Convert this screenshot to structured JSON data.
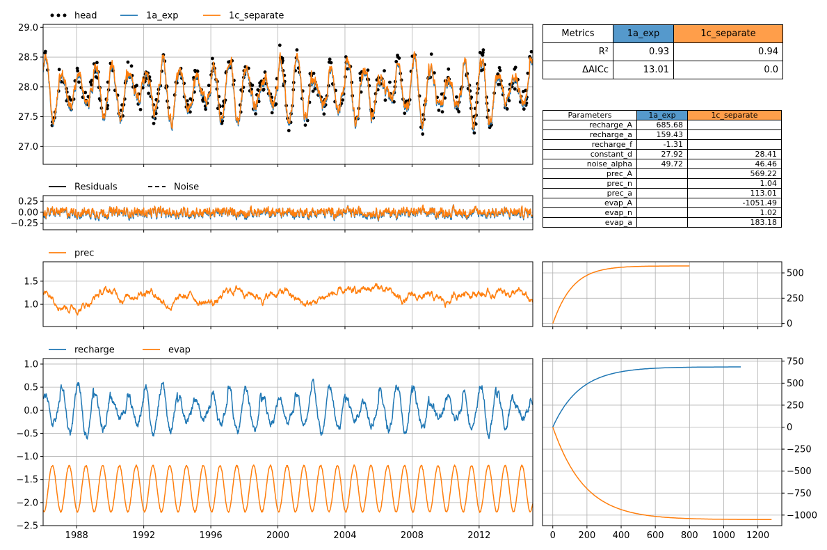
{
  "colors": {
    "blue": "#1f77b4",
    "orange": "#ff7f0e",
    "black": "#000000",
    "grid": "#b0b0b0",
    "header_blue": "#5599cc",
    "header_orange": "#ff9e4a"
  },
  "legends": {
    "head": [
      "head",
      "1a_exp",
      "1c_separate"
    ],
    "residuals": [
      "Residuals",
      "Noise"
    ],
    "prec": [
      "prec"
    ],
    "stress": [
      "recharge",
      "evap"
    ]
  },
  "metrics_table": {
    "header": [
      "Metrics",
      "1a_exp",
      "1c_separate"
    ],
    "rows": [
      {
        "label": "R²",
        "v1": "0.93",
        "v2": "0.94"
      },
      {
        "label": "ΔAICc",
        "v1": "13.01",
        "v2": "0.0"
      }
    ]
  },
  "params_table": {
    "header": [
      "Parameters",
      "1a_exp",
      "1c_separate"
    ],
    "rows": [
      {
        "label": "recharge_A",
        "v1": "685.68",
        "v2": ""
      },
      {
        "label": "recharge_a",
        "v1": "159.43",
        "v2": ""
      },
      {
        "label": "recharge_f",
        "v1": "-1.31",
        "v2": ""
      },
      {
        "label": "constant_d",
        "v1": "27.92",
        "v2": "28.41"
      },
      {
        "label": "noise_alpha",
        "v1": "49.72",
        "v2": "46.46"
      },
      {
        "label": "prec_A",
        "v1": "",
        "v2": "569.22"
      },
      {
        "label": "prec_n",
        "v1": "",
        "v2": "1.04"
      },
      {
        "label": "prec_a",
        "v1": "",
        "v2": "113.01"
      },
      {
        "label": "evap_A",
        "v1": "",
        "v2": "-1051.49"
      },
      {
        "label": "evap_n",
        "v1": "",
        "v2": "1.02"
      },
      {
        "label": "evap_a",
        "v1": "",
        "v2": "183.18"
      }
    ]
  },
  "chart_data": [
    {
      "id": "head",
      "type": "line",
      "xlim": [
        1986.0,
        2015.2
      ],
      "ylim": [
        26.7,
        29.05
      ],
      "xticks": [
        1988,
        1992,
        1996,
        2000,
        2004,
        2008,
        2012
      ],
      "yticks": [
        27.0,
        27.5,
        28.0,
        28.5,
        29.0
      ],
      "ytick_labels": [
        "27.0",
        "27.5",
        "28.0",
        "28.5",
        "29.0"
      ],
      "grid": true,
      "legend": "top-left, above axes",
      "series": [
        {
          "name": "head",
          "kind": "points",
          "color": "#000000"
        },
        {
          "name": "1a_exp",
          "kind": "line",
          "color": "#1f77b4"
        },
        {
          "name": "1c_separate",
          "kind": "line",
          "color": "#ff7f0e"
        }
      ],
      "seasonal_model": {
        "mean": 27.95,
        "amplitude": 0.45,
        "peak_frac": 0.15,
        "noise": 0.15
      }
    },
    {
      "id": "residuals",
      "type": "line",
      "xlim": [
        1986.0,
        2015.2
      ],
      "ylim": [
        -0.4,
        0.38
      ],
      "yticks": [
        -0.25,
        0.0,
        0.25
      ],
      "ytick_labels": [
        "−0.25",
        "0.00",
        "0.25"
      ],
      "grid": true,
      "legend": "top-left, above axes",
      "series": [
        {
          "name": "Residuals",
          "color": "#1f77b4"
        },
        {
          "name": "Noise",
          "color": "#ff7f0e"
        }
      ],
      "noise_model": {
        "mean": 0.0,
        "amplitude": 0.09
      }
    },
    {
      "id": "prec",
      "type": "line",
      "xlim": [
        1986.0,
        2015.2
      ],
      "ylim": [
        0.52,
        1.92
      ],
      "yticks": [
        1.0,
        1.5
      ],
      "ytick_labels": [
        "1.0",
        "1.5"
      ],
      "grid": true,
      "legend": "top-left, above axes",
      "series": [
        {
          "name": "prec",
          "color": "#ff7f0e"
        }
      ],
      "noise_model": {
        "mean": 1.18,
        "amplitude": 0.14
      }
    },
    {
      "id": "stresses",
      "type": "line",
      "xlim": [
        1986.0,
        2015.2
      ],
      "ylim": [
        -2.5,
        1.12
      ],
      "xticks": [
        1988,
        1992,
        1996,
        2000,
        2004,
        2008,
        2012
      ],
      "yticks": [
        -2.5,
        -2.0,
        -1.5,
        -1.0,
        -0.5,
        0.0,
        0.5,
        1.0
      ],
      "ytick_labels": [
        "−2.5",
        "−2.0",
        "−1.5",
        "−1.0",
        "−0.5",
        "0.0",
        "0.5",
        "1.0"
      ],
      "grid": true,
      "legend": "top-left, above axes",
      "series": [
        {
          "name": "recharge",
          "color": "#1f77b4",
          "seasonal_model": {
            "mean": 0.0,
            "amplitude": 0.45,
            "noise": 0.12
          }
        },
        {
          "name": "evap",
          "color": "#ff7f0e",
          "seasonal_model": {
            "mean": -1.7,
            "amplitude": 0.5,
            "noise": 0.03
          }
        }
      ]
    },
    {
      "id": "step_prec",
      "type": "line",
      "xlim": [
        -60,
        1340
      ],
      "ylim": [
        -30,
        610
      ],
      "yticks": [
        0,
        250,
        500
      ],
      "ytick_labels": [
        "0",
        "250",
        "500"
      ],
      "grid": true,
      "series": [
        {
          "name": "prec",
          "color": "#ff7f0e",
          "A": 569.22,
          "a": 113.01,
          "n": 1.04,
          "tmax": 800
        }
      ]
    },
    {
      "id": "step_stresses",
      "type": "line",
      "xlim": [
        -60,
        1340
      ],
      "ylim": [
        -1120,
        780
      ],
      "xticks": [
        0,
        200,
        400,
        600,
        800,
        1000,
        1200
      ],
      "xtick_labels": [
        "0",
        "200",
        "400",
        "600",
        "800",
        "1000",
        "1200"
      ],
      "yticks": [
        -1000,
        -750,
        -500,
        -250,
        0,
        250,
        500,
        750
      ],
      "ytick_labels": [
        "−1000",
        "−750",
        "−500",
        "−250",
        "0",
        "250",
        "500",
        "750"
      ],
      "grid": true,
      "series": [
        {
          "name": "recharge",
          "color": "#1f77b4",
          "A": 685.68,
          "a": 159.43,
          "n": 1.0,
          "tmax": 1100
        },
        {
          "name": "evap",
          "color": "#ff7f0e",
          "A": -1051.49,
          "a": 183.18,
          "n": 1.02,
          "tmax": 1280
        }
      ]
    }
  ]
}
